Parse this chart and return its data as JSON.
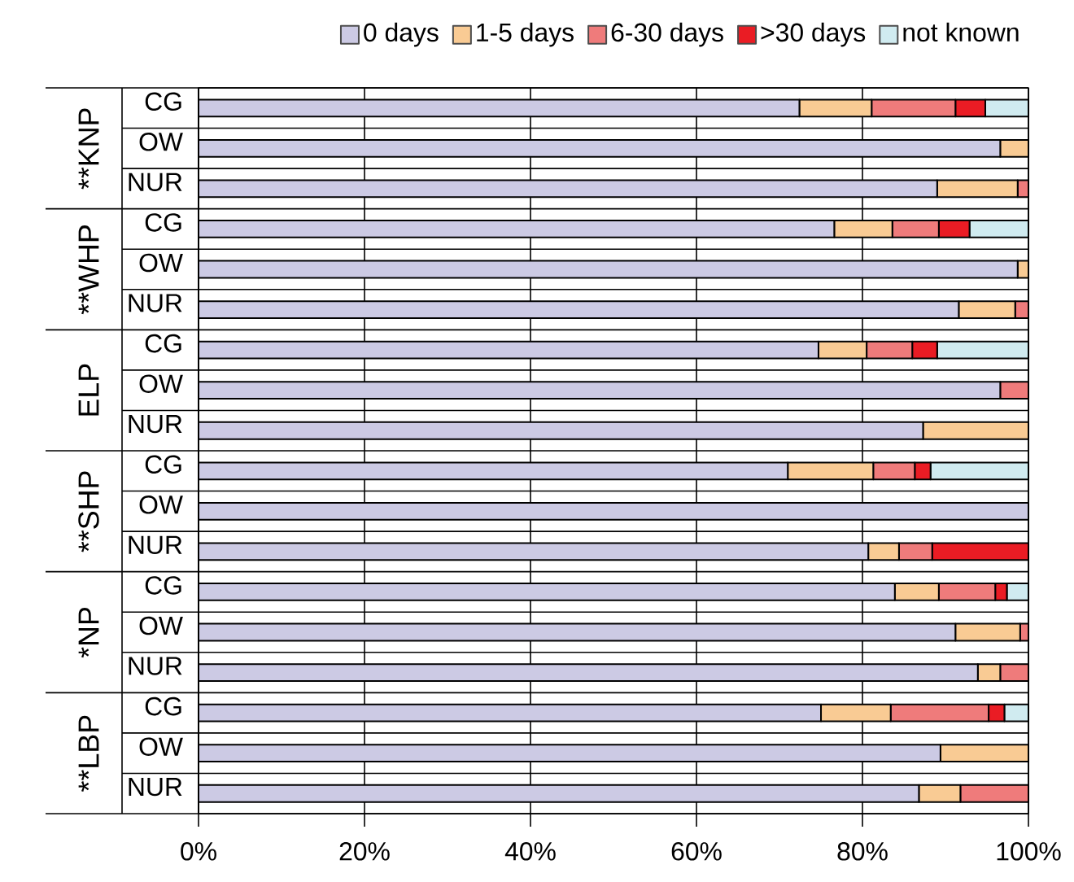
{
  "chart_data": {
    "type": "bar",
    "orientation": "horizontal",
    "stacked": true,
    "categories": [
      "CG",
      "OW",
      "NUR",
      "CG",
      "OW",
      "NUR",
      "CG",
      "OW",
      "NUR",
      "CG",
      "OW",
      "NUR",
      "CG",
      "OW",
      "NUR",
      "CG",
      "OW",
      "NUR"
    ],
    "annotations": [
      "**KNP",
      "**WHP",
      "ELP",
      "**SHP",
      "*NP",
      "**LBP"
    ],
    "series": [
      {
        "name": "0 days",
        "color": "#cccae4",
        "values": [
          72.4,
          96.6,
          89.0,
          76.6,
          98.7,
          91.6,
          74.7,
          96.6,
          87.3,
          71.0,
          100,
          80.7,
          83.9,
          91.2,
          93.9,
          75.0,
          89.4,
          86.8
        ]
      },
      {
        "name": "1-5 days",
        "color": "#f9cb94",
        "values": [
          8.7,
          3.4,
          9.7,
          7.0,
          1.3,
          6.8,
          5.8,
          0,
          12.7,
          10.3,
          0,
          3.7,
          5.3,
          7.8,
          2.7,
          8.4,
          10.6,
          5.0
        ]
      },
      {
        "name": "6-30 days",
        "color": "#ef7b7b",
        "values": [
          10.1,
          0,
          1.3,
          5.6,
          0,
          1.6,
          5.5,
          3.4,
          0,
          5.0,
          0,
          4.0,
          6.8,
          1.0,
          3.4,
          11.8,
          0,
          8.2
        ]
      },
      {
        "name": ">30 days",
        "color": "#ea1c24",
        "values": [
          3.6,
          0,
          0,
          3.7,
          0,
          0,
          3.0,
          0,
          0,
          1.9,
          0,
          11.6,
          1.4,
          0,
          0,
          1.9,
          0,
          0
        ]
      },
      {
        "name": "not known",
        "color": "#d0ebf0",
        "values": [
          5.2,
          0,
          0,
          7.1,
          0,
          0,
          11.0,
          0,
          0,
          11.8,
          0,
          0,
          2.6,
          0,
          0,
          2.9,
          0,
          0
        ]
      }
    ],
    "xlim": [
      0,
      100
    ],
    "xticks": [
      {
        "value": 0,
        "label": "0%"
      },
      {
        "value": 20,
        "label": "20%"
      },
      {
        "value": 40,
        "label": "40%"
      },
      {
        "value": 60,
        "label": "60%"
      },
      {
        "value": 80,
        "label": "80%"
      },
      {
        "value": 100,
        "label": "100%"
      }
    ],
    "grid": "x",
    "legend": "top"
  }
}
